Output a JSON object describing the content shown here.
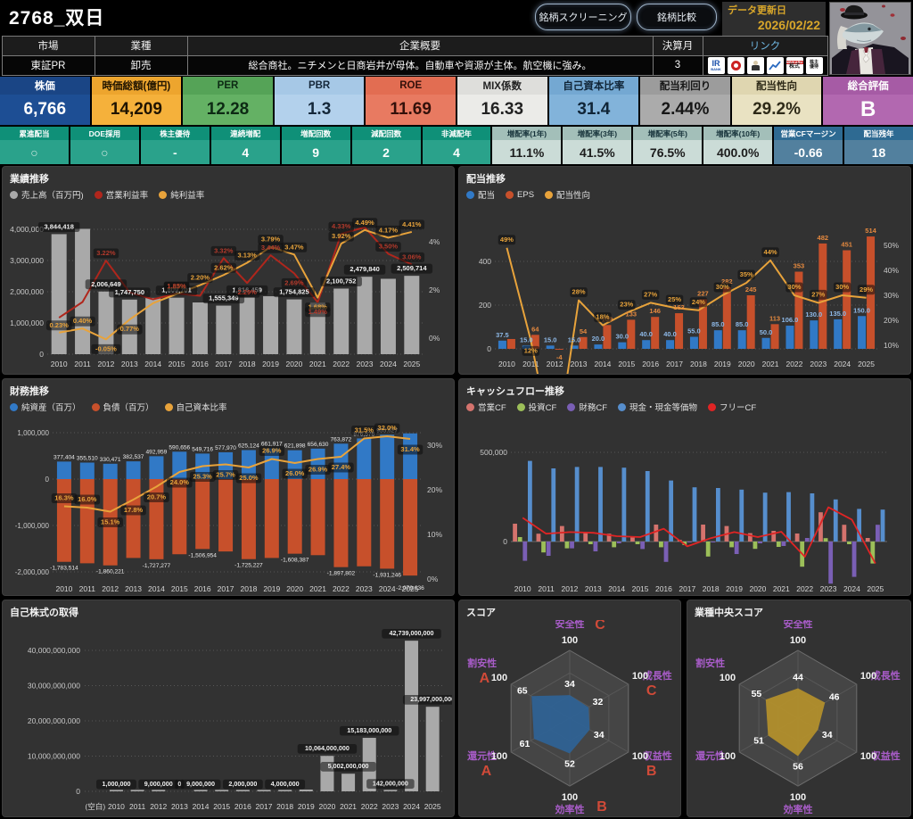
{
  "header": {
    "title": "2768_双日",
    "screening_button": "銘柄スクリーニング",
    "compare_button": "銘柄比較",
    "update_label": "データ更新日",
    "update_date": "2026/02/22"
  },
  "info": {
    "market_label": "市場",
    "market": "東証PR",
    "sector_label": "業種",
    "sector": "卸売",
    "profile_label": "企業概要",
    "profile": "総合商社。ニチメンと日商岩井が母体。自動車や資源が主体。航空機に強み。",
    "fiscal_label": "決算月",
    "fiscal_month": "3",
    "links_label": "リンク",
    "link_icons": [
      "ir-bank",
      "kabutan",
      "president",
      "stock-chart",
      "minkabu-stock",
      "yutai"
    ]
  },
  "metrics": [
    {
      "label": "株価",
      "value": "6,766",
      "label_bg": "#1a4585",
      "bg": "#1d4e94",
      "fg": "#ffffff"
    },
    {
      "label": "時価総額(億円)",
      "value": "14,209",
      "label_bg": "#eda52e",
      "bg": "#f5b13b",
      "fg": "#201400"
    },
    {
      "label": "PER",
      "value": "12.28",
      "label_bg": "#55a357",
      "bg": "#64b164",
      "fg": "#0d2a14"
    },
    {
      "label": "PBR",
      "value": "1.3",
      "label_bg": "#a6c8e6",
      "bg": "#b3d1ec",
      "fg": "#15283a"
    },
    {
      "label": "ROE",
      "value": "11.69",
      "label_bg": "#e26d52",
      "bg": "#e87a61",
      "fg": "#33100a"
    },
    {
      "label": "MIX係数",
      "value": "16.33",
      "label_bg": "#dededb",
      "bg": "#ebebe8",
      "fg": "#222222"
    },
    {
      "label": "自己資本比率",
      "value": "31.4",
      "label_bg": "#74a8d2",
      "bg": "#82b3da",
      "fg": "#102537"
    },
    {
      "label": "配当利回り",
      "value": "2.44%",
      "label_bg": "#9c9c9c",
      "bg": "#ababab",
      "fg": "#161616"
    },
    {
      "label": "配当性向",
      "value": "29.2%",
      "label_bg": "#dfd6b0",
      "bg": "#e9e2c2",
      "fg": "#2e2a18"
    },
    {
      "label": "総合評価",
      "value": "B",
      "label_bg": "#a65ba5",
      "bg": "#b268b0",
      "fg": "#ffffff"
    }
  ],
  "submetrics": [
    {
      "label": "累進配当",
      "value": "○",
      "label_bg": "#0f9078",
      "bg": "#2aa28b",
      "lfg": "#ffffff",
      "fg": "#d5e9e3"
    },
    {
      "label": "DOE採用",
      "value": "○",
      "label_bg": "#0f9078",
      "bg": "#2aa28b",
      "lfg": "#ffffff",
      "fg": "#d5e9e3"
    },
    {
      "label": "株主優待",
      "value": "-",
      "label_bg": "#0f9078",
      "bg": "#2aa28b",
      "lfg": "#ffffff",
      "fg": "#eafaf4"
    },
    {
      "label": "連続増配",
      "value": "4",
      "label_bg": "#0f9078",
      "bg": "#2aa28b",
      "lfg": "#ffffff",
      "fg": "#ffffff"
    },
    {
      "label": "増配回数",
      "value": "9",
      "label_bg": "#0f9078",
      "bg": "#2aa28b",
      "lfg": "#ffffff",
      "fg": "#ffffff"
    },
    {
      "label": "減配回数",
      "value": "2",
      "label_bg": "#0f9078",
      "bg": "#2aa28b",
      "lfg": "#ffffff",
      "fg": "#ffffff"
    },
    {
      "label": "非減配年",
      "value": "4",
      "label_bg": "#0f9078",
      "bg": "#2aa28b",
      "lfg": "#ffffff",
      "fg": "#ffffff"
    },
    {
      "label": "増配率(1年)",
      "value": "11.1%",
      "label_bg": "#a3bfb9",
      "bg": "#cbdcd7",
      "lfg": "#16323a",
      "fg": "#1c1c1c"
    },
    {
      "label": "増配率(3年)",
      "value": "41.5%",
      "label_bg": "#a3bfb9",
      "bg": "#cbdcd7",
      "lfg": "#16323a",
      "fg": "#1c1c1c"
    },
    {
      "label": "増配率(5年)",
      "value": "76.5%",
      "label_bg": "#a3bfb9",
      "bg": "#cbdcd7",
      "lfg": "#16323a",
      "fg": "#1c1c1c"
    },
    {
      "label": "増配率(10年)",
      "value": "400.0%",
      "label_bg": "#a3bfb9",
      "bg": "#cbdcd7",
      "lfg": "#16323a",
      "fg": "#1c1c1c"
    },
    {
      "label": "営業CFマージン",
      "value": "-0.66",
      "label_bg": "#2e6a92",
      "bg": "#52809e",
      "lfg": "#ffffff",
      "fg": "#ffffff"
    },
    {
      "label": "配当残年",
      "value": "18",
      "label_bg": "#2e6a92",
      "bg": "#52809e",
      "lfg": "#ffffff",
      "fg": "#ffffff"
    }
  ],
  "chart_data": [
    {
      "type": "bar+line",
      "title": "業績推移",
      "legend": [
        {
          "name": "売上高（百万円)",
          "color": "#a9a9a9"
        },
        {
          "name": "営業利益率",
          "color": "#b0261c"
        },
        {
          "name": "純利益率",
          "color": "#e8a33b"
        }
      ],
      "x": [
        2010,
        2011,
        2012,
        2013,
        2014,
        2015,
        2016,
        2017,
        2018,
        2019,
        2020,
        2021,
        2022,
        2023,
        2024,
        2025
      ],
      "sales": [
        3844418,
        4014639,
        2006649,
        1747750,
        1803000,
        1809701,
        1657000,
        1555349,
        1816459,
        1856000,
        1754825,
        1650000,
        2100752,
        2479840,
        2415000,
        2509714
      ],
      "sales_labels": [
        "3,844,418",
        null,
        "2,006,649",
        "1,747,750",
        null,
        "1,809,701",
        null,
        "1,555,349",
        "1,816,459",
        null,
        "1,754,825",
        null,
        "2,100,752",
        "2,479,840",
        null,
        "2,509,714"
      ],
      "op_margin": [
        0.85,
        1.5,
        3.22,
        1.9,
        1.61,
        1.85,
        1.76,
        3.32,
        2.29,
        3.44,
        2.69,
        1.49,
        4.33,
        4.6,
        3.5,
        3.06
      ],
      "op_labels": [
        null,
        null,
        "3.22%",
        null,
        null,
        "1.85%",
        null,
        "3.32%",
        "2.29%",
        "3.44%",
        "2.69%",
        "1.49%",
        "4.33%",
        null,
        "3.50%",
        "3.06%"
      ],
      "net_margin": [
        0.23,
        0.4,
        -0.05,
        0.77,
        1.45,
        1.83,
        2.2,
        2.62,
        3.13,
        3.79,
        3.47,
        1.68,
        3.92,
        4.49,
        4.17,
        4.41
      ],
      "net_labels": [
        "0.23%",
        "0.40%",
        "-0.05%",
        "0.77%",
        null,
        "1.83%",
        "2.20%",
        "2.62%",
        "3.13%",
        "3.79%",
        "3.47%",
        "1.68%",
        "3.92%",
        "4.49%",
        "4.17%",
        "4.41%"
      ],
      "yticks_left": [
        0,
        1000000,
        2000000,
        3000000,
        4000000
      ],
      "yticks_right_pct": [
        0,
        2,
        4
      ],
      "ylim_left": [
        0,
        4200000
      ]
    },
    {
      "type": "bar+line",
      "title": "配当推移",
      "legend": [
        {
          "name": "配当",
          "color": "#3179c6"
        },
        {
          "name": "EPS",
          "color": "#c7502b"
        },
        {
          "name": "配当性向",
          "color": "#e8a33b"
        }
      ],
      "x": [
        2010,
        2011,
        2012,
        2013,
        2014,
        2015,
        2016,
        2017,
        2018,
        2019,
        2020,
        2021,
        2022,
        2023,
        2024,
        2025
      ],
      "dividend": [
        37.5,
        15,
        15,
        15,
        20,
        30,
        40,
        40,
        55,
        85,
        85,
        50,
        106,
        130,
        135,
        150
      ],
      "dividend_labels": [
        "37.5",
        "15.0",
        "15.0",
        "15.0",
        "20.0",
        "30.0",
        "40.0",
        "40.0",
        "55.0",
        "85.0",
        "85.0",
        "50.0",
        "106.0",
        "130.0",
        "135.0",
        "150.0"
      ],
      "eps": [
        45,
        64,
        -4,
        54,
        109,
        133,
        146,
        163,
        227,
        282,
        245,
        113,
        353,
        482,
        451,
        514
      ],
      "eps_labels": [
        null,
        "64",
        "-4",
        "54",
        "109",
        "133",
        "146",
        "163",
        "227",
        "282",
        "245",
        "113",
        "353",
        "482",
        "451",
        "514"
      ],
      "payout_pct": [
        49,
        12,
        null,
        28,
        18,
        23,
        27,
        25,
        24,
        30,
        35,
        44,
        30,
        27,
        30,
        29
      ],
      "payout_labels": [
        "49%",
        "12%",
        null,
        "28%",
        "18%",
        "23%",
        "27%",
        "25%",
        "24%",
        "30%",
        "35%",
        "44%",
        "30%",
        "27%",
        "30%",
        "29%"
      ],
      "yticks_left": [
        0,
        200,
        400
      ],
      "yticks_right_pct": [
        10,
        20,
        30,
        40,
        50
      ]
    },
    {
      "type": "bar+line",
      "title": "財務推移",
      "legend": [
        {
          "name": "純資産（百万）",
          "color": "#3179c6"
        },
        {
          "name": "負債（百万）",
          "color": "#c7502b"
        },
        {
          "name": "自己資本比率",
          "color": "#e8a33b"
        }
      ],
      "x": [
        2010,
        2011,
        2012,
        2013,
        2014,
        2015,
        2016,
        2017,
        2018,
        2019,
        2020,
        2021,
        2022,
        2023,
        2024,
        2025
      ],
      "net_assets": [
        377404,
        355510,
        330471,
        382537,
        492959,
        590656,
        549716,
        577970,
        625124,
        661917,
        621898,
        656630,
        763872,
        876576,
        955627,
        985000
      ],
      "net_assets_labels": [
        "377,404",
        "355,510",
        "330,471",
        "382,537",
        "492,959",
        "590,656",
        "549,716",
        "577,970",
        "625,124",
        "661,917",
        "621,898",
        "656,630",
        "763,872",
        "876,576",
        "955,627",
        null
      ],
      "liabilities": [
        -1783514,
        -1815000,
        -1860221,
        -1700000,
        -1727277,
        -1620000,
        -1506954,
        -1560000,
        -1725227,
        -1700000,
        -1608387,
        -1640000,
        -1897802,
        -1880000,
        -1931246,
        -2079636
      ],
      "liabilities_labels": [
        "-1,783,514",
        null,
        "-1,860,221",
        null,
        "-1,727,277",
        null,
        "-1,506,954",
        null,
        "-1,725,227",
        null,
        "-1,608,387",
        null,
        "-1,897,802",
        null,
        "-1,931,246",
        "-2,079,636"
      ],
      "equity_ratio_pct": [
        16.3,
        16.0,
        15.1,
        17.8,
        20.7,
        24.0,
        25.3,
        25.7,
        25.0,
        26.9,
        26.0,
        26.9,
        27.4,
        31.5,
        32.0,
        31.4
      ],
      "equity_labels": [
        "16.3%",
        "16.0%",
        "15.1%",
        "17.8%",
        "20.7%",
        "24.0%",
        "25.3%",
        "25.7%",
        "25.0%",
        "26.9%",
        "26.0%",
        "26.9%",
        "27.4%",
        "31.5%",
        "32.0%",
        "31.4%"
      ],
      "yticks_left": [
        1000000,
        0,
        -1000000,
        -2000000
      ],
      "yticks_right_pct": [
        0,
        10,
        20,
        30
      ]
    },
    {
      "type": "bar+line",
      "title": "キャッシュフロー推移",
      "legend": [
        {
          "name": "営業CF",
          "color": "#d4736d"
        },
        {
          "name": "投資CF",
          "color": "#9cbf59"
        },
        {
          "name": "財務CF",
          "color": "#7a5fb5"
        },
        {
          "name": "現金・現金等価物",
          "color": "#568ecd"
        },
        {
          "name": "フリーCF",
          "color": "#e02424"
        }
      ],
      "x": [
        2010,
        2011,
        2012,
        2013,
        2014,
        2015,
        2016,
        2017,
        2018,
        2019,
        2020,
        2021,
        2022,
        2023,
        2024,
        2025
      ],
      "operating": [
        100000,
        44000,
        87000,
        53000,
        44000,
        30000,
        95000,
        10000,
        95000,
        87000,
        47000,
        60000,
        45000,
        164000,
        94000,
        20000
      ],
      "investing": [
        25000,
        -61000,
        -38000,
        -15000,
        -32000,
        -15000,
        -32000,
        -20000,
        -84000,
        -32000,
        -41000,
        -30000,
        -141000,
        19000,
        -15000,
        -123000
      ],
      "financing": [
        -108000,
        -80000,
        -38000,
        -55000,
        -10000,
        -42000,
        -114000,
        -2000,
        -2000,
        -70000,
        -10000,
        -25000,
        20000,
        -236000,
        -198000,
        94000
      ],
      "cash": [
        452000,
        410000,
        418000,
        418000,
        414000,
        395000,
        342000,
        304000,
        300000,
        291000,
        274000,
        277000,
        270000,
        236000,
        183000,
        179000
      ],
      "free_cf": [
        133000,
        44000,
        53000,
        49000,
        30000,
        25000,
        72000,
        -27000,
        19000,
        53000,
        25000,
        55000,
        -85000,
        192000,
        123000,
        -123000
      ],
      "yticks_left": [
        0,
        500000
      ]
    },
    {
      "type": "bar",
      "title": "自己株式の取得",
      "categories": [
        "(空白)",
        "2010",
        "2011",
        "2012",
        "2013",
        "2014",
        "2015",
        "2016",
        "2017",
        "2018",
        "2019",
        "2020",
        "2021",
        "2022",
        "2023",
        "2024",
        "2025"
      ],
      "values": [
        0,
        1000000,
        1000000,
        9000000,
        0,
        9000000,
        1000000,
        2000000,
        1000000,
        4000000,
        500000000,
        10064000000,
        5002000000,
        15183000000,
        142000000,
        42739000000,
        23997000000
      ],
      "labels": [
        null,
        "1,000,000",
        null,
        "9,000,000",
        "0",
        "9,000,000",
        null,
        "2,000,000",
        null,
        "4,000,000",
        null,
        "10,064,000,000",
        "5,002,000,000",
        "15,183,000,000",
        "142,000,000",
        "42,739,000,000",
        "23,997,000,000"
      ],
      "yticks": [
        0,
        10000000000,
        20000000000,
        30000000000,
        40000000000
      ],
      "bar_color": "#a9a9a9"
    },
    {
      "type": "radar",
      "title": "スコア",
      "axes": [
        "安全性",
        "成長性",
        "収益性",
        "効率性",
        "還元性",
        "割安性"
      ],
      "values": [
        34,
        32,
        34,
        52,
        61,
        65
      ],
      "grades": [
        "C",
        "C",
        "B",
        "B",
        "A",
        "A"
      ],
      "max": 100,
      "tick_label": "100",
      "fill": "#2f6293"
    },
    {
      "type": "radar",
      "title": "業種中央スコア",
      "axes": [
        "安全性",
        "成長性",
        "収益性",
        "効率性",
        "還元性",
        "割安性"
      ],
      "values": [
        44,
        46,
        34,
        56,
        51,
        55
      ],
      "grades": null,
      "max": 100,
      "tick_label": "100",
      "fill": "#b28f2c"
    }
  ],
  "colors": {
    "gold_line": "#e8a33b",
    "red_line": "#b0261c",
    "red_label": "#b23a2c",
    "bar_gray": "#a9a9a9",
    "blue_bar": "#3179c6",
    "orange_bar": "#c7502b",
    "blue_label": "#8db8e6",
    "orange_label": "#e5893f",
    "radar_axis_label": "#a85cc8",
    "radar_grade": "#d04a38"
  }
}
